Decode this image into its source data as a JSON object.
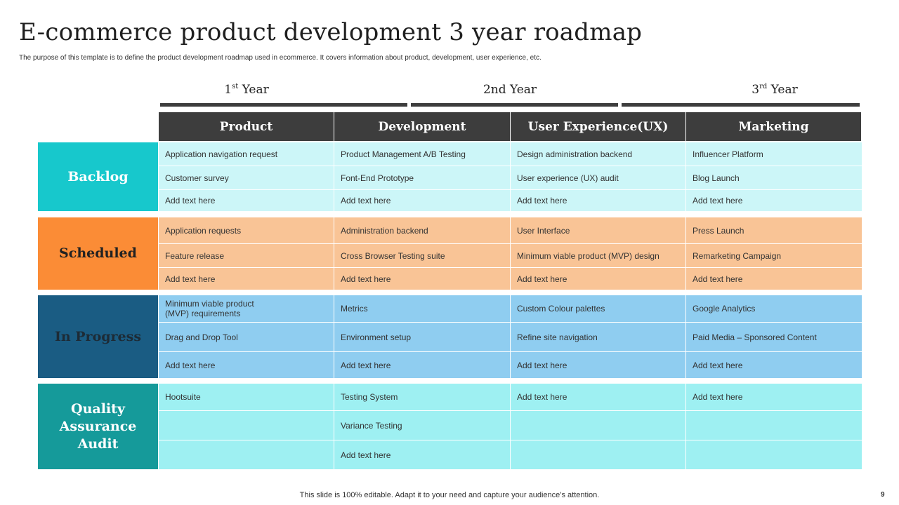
{
  "header": {
    "title": "E-commerce product development 3 year roadmap",
    "subtitle": "The purpose of this template is to define the product development roadmap used in ecommerce. It covers information about product, development, user experience, etc."
  },
  "years": [
    {
      "label": "Year",
      "ordinal": "1",
      "suffix": "st"
    },
    {
      "label": "2nd Year"
    },
    {
      "label": "Year",
      "ordinal": "3",
      "suffix": "rd"
    }
  ],
  "columns": [
    "Product",
    "Development",
    "User Experience(UX)",
    "Marketing"
  ],
  "groups": {
    "backlog": {
      "label": "Backlog",
      "color": "#17c8cc",
      "rows": [
        [
          "Application navigation request",
          "Product Management A/B Testing",
          "Design administration backend",
          "Influencer Platform"
        ],
        [
          "Customer survey",
          "Font-End Prototype",
          "User experience (UX) audit",
          "Blog Launch"
        ],
        [
          "Add text here",
          "Add text here",
          "Add text here",
          "Add text here"
        ]
      ]
    },
    "scheduled": {
      "label": "Scheduled",
      "color": "#fb8c36",
      "rows": [
        [
          "Application requests",
          "Administration backend",
          "User Interface",
          "Press Launch"
        ],
        [
          "Feature release",
          "Cross Browser Testing suite",
          "Minimum viable product (MVP)  design",
          "Remarketing Campaign"
        ],
        [
          "Add text here",
          "Add text here",
          "Add text here",
          "Add text here"
        ]
      ]
    },
    "in_progress": {
      "label": "In Progress",
      "color": "#1a5c83",
      "rows": [
        [
          "Minimum viable product (MVP)  requirements",
          "Metrics",
          "Custom Colour palettes",
          "Google Analytics"
        ],
        [
          "Drag and Drop Tool",
          "Environment setup",
          "Refine site navigation",
          "Paid Media – Sponsored Content"
        ],
        [
          "Add text here",
          "Add text here",
          "Add text here",
          "Add text here"
        ]
      ]
    },
    "qa": {
      "label": "Quality Assurance Audit",
      "color": "#159a9a",
      "rows": [
        [
          "Hootsuite",
          "Testing System",
          "Add text here",
          "Add text here"
        ],
        [
          "",
          "Variance Testing",
          "",
          ""
        ],
        [
          "",
          "Add text here",
          "",
          ""
        ]
      ]
    }
  },
  "footer": {
    "note": "This slide is 100% editable. Adapt it to your need and capture your audience’s attention.",
    "page": "9"
  }
}
